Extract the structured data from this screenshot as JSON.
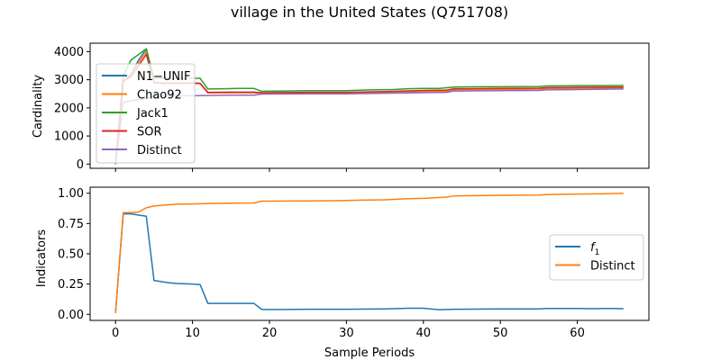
{
  "figure_title": "village in the United States (Q751708)",
  "chart_data": [
    {
      "type": "line",
      "title": "",
      "xlabel": "",
      "ylabel": "Cardinality",
      "xlim": [
        -3.3,
        69.3
      ],
      "ylim": [
        -150,
        4300
      ],
      "xticks": [
        0,
        10,
        20,
        30,
        40,
        50,
        60
      ],
      "xtick_labels_visible": false,
      "yticks": [
        0,
        1000,
        2000,
        3000,
        4000
      ],
      "ytick_labels": [
        "0",
        "1000",
        "2000",
        "3000",
        "4000"
      ],
      "grid": false,
      "legend_position": "upper left",
      "series": [
        {
          "name": "N1−UNIF",
          "color": "#1f77b4",
          "points": [
            [
              0,
              0
            ],
            [
              1,
              2950
            ],
            [
              2,
              3200
            ],
            [
              3,
              3700
            ],
            [
              4,
              4100
            ],
            [
              5,
              2900
            ],
            [
              6,
              2880
            ],
            [
              8,
              2880
            ],
            [
              10,
              2880
            ],
            [
              11,
              2870
            ],
            [
              12,
              2540
            ],
            [
              15,
              2540
            ],
            [
              18,
              2540
            ],
            [
              19,
              2520
            ],
            [
              25,
              2530
            ],
            [
              30,
              2530
            ],
            [
              35,
              2560
            ],
            [
              40,
              2590
            ],
            [
              43,
              2600
            ],
            [
              44,
              2650
            ],
            [
              50,
              2660
            ],
            [
              55,
              2670
            ],
            [
              56,
              2690
            ],
            [
              60,
              2700
            ],
            [
              66,
              2720
            ]
          ]
        },
        {
          "name": "Chao92",
          "color": "#ff7f0e",
          "points": [
            [
              0,
              0
            ],
            [
              1,
              2950
            ],
            [
              2,
              3150
            ],
            [
              3,
              3600
            ],
            [
              4,
              4000
            ],
            [
              5,
              2890
            ],
            [
              6,
              2870
            ],
            [
              8,
              2870
            ],
            [
              10,
              2870
            ],
            [
              11,
              2860
            ],
            [
              12,
              2530
            ],
            [
              15,
              2540
            ],
            [
              18,
              2540
            ],
            [
              19,
              2520
            ],
            [
              25,
              2530
            ],
            [
              30,
              2530
            ],
            [
              35,
              2560
            ],
            [
              40,
              2590
            ],
            [
              43,
              2600
            ],
            [
              44,
              2650
            ],
            [
              50,
              2660
            ],
            [
              55,
              2670
            ],
            [
              56,
              2690
            ],
            [
              60,
              2700
            ],
            [
              66,
              2720
            ]
          ]
        },
        {
          "name": "Jack1",
          "color": "#2ca02c",
          "points": [
            [
              0,
              0
            ],
            [
              1,
              3150
            ],
            [
              2,
              3700
            ],
            [
              3,
              3900
            ],
            [
              4,
              4100
            ],
            [
              5,
              3050
            ],
            [
              6,
              3050
            ],
            [
              8,
              3050
            ],
            [
              10,
              3050
            ],
            [
              11,
              3050
            ],
            [
              12,
              2670
            ],
            [
              14,
              2680
            ],
            [
              16,
              2690
            ],
            [
              18,
              2690
            ],
            [
              19,
              2590
            ],
            [
              22,
              2600
            ],
            [
              25,
              2610
            ],
            [
              30,
              2610
            ],
            [
              33,
              2640
            ],
            [
              36,
              2650
            ],
            [
              38,
              2680
            ],
            [
              40,
              2690
            ],
            [
              42,
              2690
            ],
            [
              44,
              2740
            ],
            [
              47,
              2750
            ],
            [
              50,
              2750
            ],
            [
              55,
              2760
            ],
            [
              56,
              2780
            ],
            [
              60,
              2790
            ],
            [
              64,
              2790
            ],
            [
              66,
              2800
            ]
          ]
        },
        {
          "name": "SOR",
          "color": "#d62728",
          "points": [
            [
              0,
              0
            ],
            [
              1,
              2950
            ],
            [
              2,
              3100
            ],
            [
              3,
              3500
            ],
            [
              4,
              3900
            ],
            [
              5,
              2900
            ],
            [
              6,
              2880
            ],
            [
              8,
              2880
            ],
            [
              10,
              2880
            ],
            [
              11,
              2870
            ],
            [
              12,
              2550
            ],
            [
              15,
              2560
            ],
            [
              18,
              2560
            ],
            [
              19,
              2540
            ],
            [
              25,
              2550
            ],
            [
              30,
              2550
            ],
            [
              35,
              2580
            ],
            [
              40,
              2620
            ],
            [
              43,
              2630
            ],
            [
              44,
              2680
            ],
            [
              50,
              2690
            ],
            [
              55,
              2700
            ],
            [
              56,
              2720
            ],
            [
              60,
              2730
            ],
            [
              66,
              2740
            ]
          ]
        },
        {
          "name": "Distinct",
          "color": "#9467bd",
          "points": [
            [
              0,
              0
            ],
            [
              1,
              2200
            ],
            [
              2,
              2250
            ],
            [
              3,
              2300
            ],
            [
              4,
              2340
            ],
            [
              5,
              2390
            ],
            [
              6,
              2420
            ],
            [
              8,
              2430
            ],
            [
              10,
              2430
            ],
            [
              12,
              2440
            ],
            [
              15,
              2450
            ],
            [
              18,
              2450
            ],
            [
              19,
              2490
            ],
            [
              25,
              2500
            ],
            [
              30,
              2500
            ],
            [
              35,
              2520
            ],
            [
              40,
              2540
            ],
            [
              43,
              2550
            ],
            [
              44,
              2600
            ],
            [
              50,
              2610
            ],
            [
              55,
              2620
            ],
            [
              56,
              2640
            ],
            [
              60,
              2650
            ],
            [
              66,
              2670
            ]
          ]
        }
      ]
    },
    {
      "type": "line",
      "title": "",
      "xlabel": "Sample Periods",
      "ylabel": "Indicators",
      "xlim": [
        -3.3,
        69.3
      ],
      "ylim": [
        -0.05,
        1.05
      ],
      "xticks": [
        0,
        10,
        20,
        30,
        40,
        50,
        60
      ],
      "xtick_labels": [
        "0",
        "10",
        "20",
        "30",
        "40",
        "50",
        "60"
      ],
      "yticks": [
        0,
        0.25,
        0.5,
        0.75,
        1.0
      ],
      "ytick_labels": [
        "0.00",
        "0.25",
        "0.50",
        "0.75",
        "1.00"
      ],
      "grid": false,
      "legend_position": "center right",
      "series": [
        {
          "name": "f",
          "name_subscript": "1",
          "color": "#1f77b4",
          "points": [
            [
              0,
              0.01
            ],
            [
              1,
              0.83
            ],
            [
              2,
              0.83
            ],
            [
              3,
              0.82
            ],
            [
              4,
              0.81
            ],
            [
              5,
              0.28
            ],
            [
              6,
              0.27
            ],
            [
              7,
              0.26
            ],
            [
              8,
              0.255
            ],
            [
              10,
              0.25
            ],
            [
              11,
              0.245
            ],
            [
              12,
              0.09
            ],
            [
              15,
              0.09
            ],
            [
              18,
              0.09
            ],
            [
              19,
              0.04
            ],
            [
              22,
              0.04
            ],
            [
              25,
              0.042
            ],
            [
              30,
              0.042
            ],
            [
              35,
              0.045
            ],
            [
              38,
              0.05
            ],
            [
              40,
              0.05
            ],
            [
              42,
              0.038
            ],
            [
              44,
              0.042
            ],
            [
              50,
              0.045
            ],
            [
              55,
              0.045
            ],
            [
              56,
              0.048
            ],
            [
              60,
              0.048
            ],
            [
              62,
              0.047
            ],
            [
              64,
              0.048
            ],
            [
              66,
              0.047
            ]
          ]
        },
        {
          "name": "Distinct",
          "color": "#ff7f0e",
          "points": [
            [
              0,
              0.01
            ],
            [
              1,
              0.84
            ],
            [
              2,
              0.84
            ],
            [
              3,
              0.845
            ],
            [
              4,
              0.88
            ],
            [
              5,
              0.895
            ],
            [
              6,
              0.9
            ],
            [
              7,
              0.905
            ],
            [
              8,
              0.91
            ],
            [
              10,
              0.912
            ],
            [
              12,
              0.915
            ],
            [
              15,
              0.918
            ],
            [
              18,
              0.92
            ],
            [
              19,
              0.935
            ],
            [
              25,
              0.937
            ],
            [
              30,
              0.94
            ],
            [
              32,
              0.943
            ],
            [
              35,
              0.946
            ],
            [
              38,
              0.955
            ],
            [
              40,
              0.958
            ],
            [
              42,
              0.965
            ],
            [
              43,
              0.968
            ],
            [
              44,
              0.978
            ],
            [
              50,
              0.983
            ],
            [
              55,
              0.985
            ],
            [
              56,
              0.99
            ],
            [
              60,
              0.993
            ],
            [
              63,
              0.995
            ],
            [
              66,
              1.0
            ]
          ]
        }
      ]
    }
  ]
}
